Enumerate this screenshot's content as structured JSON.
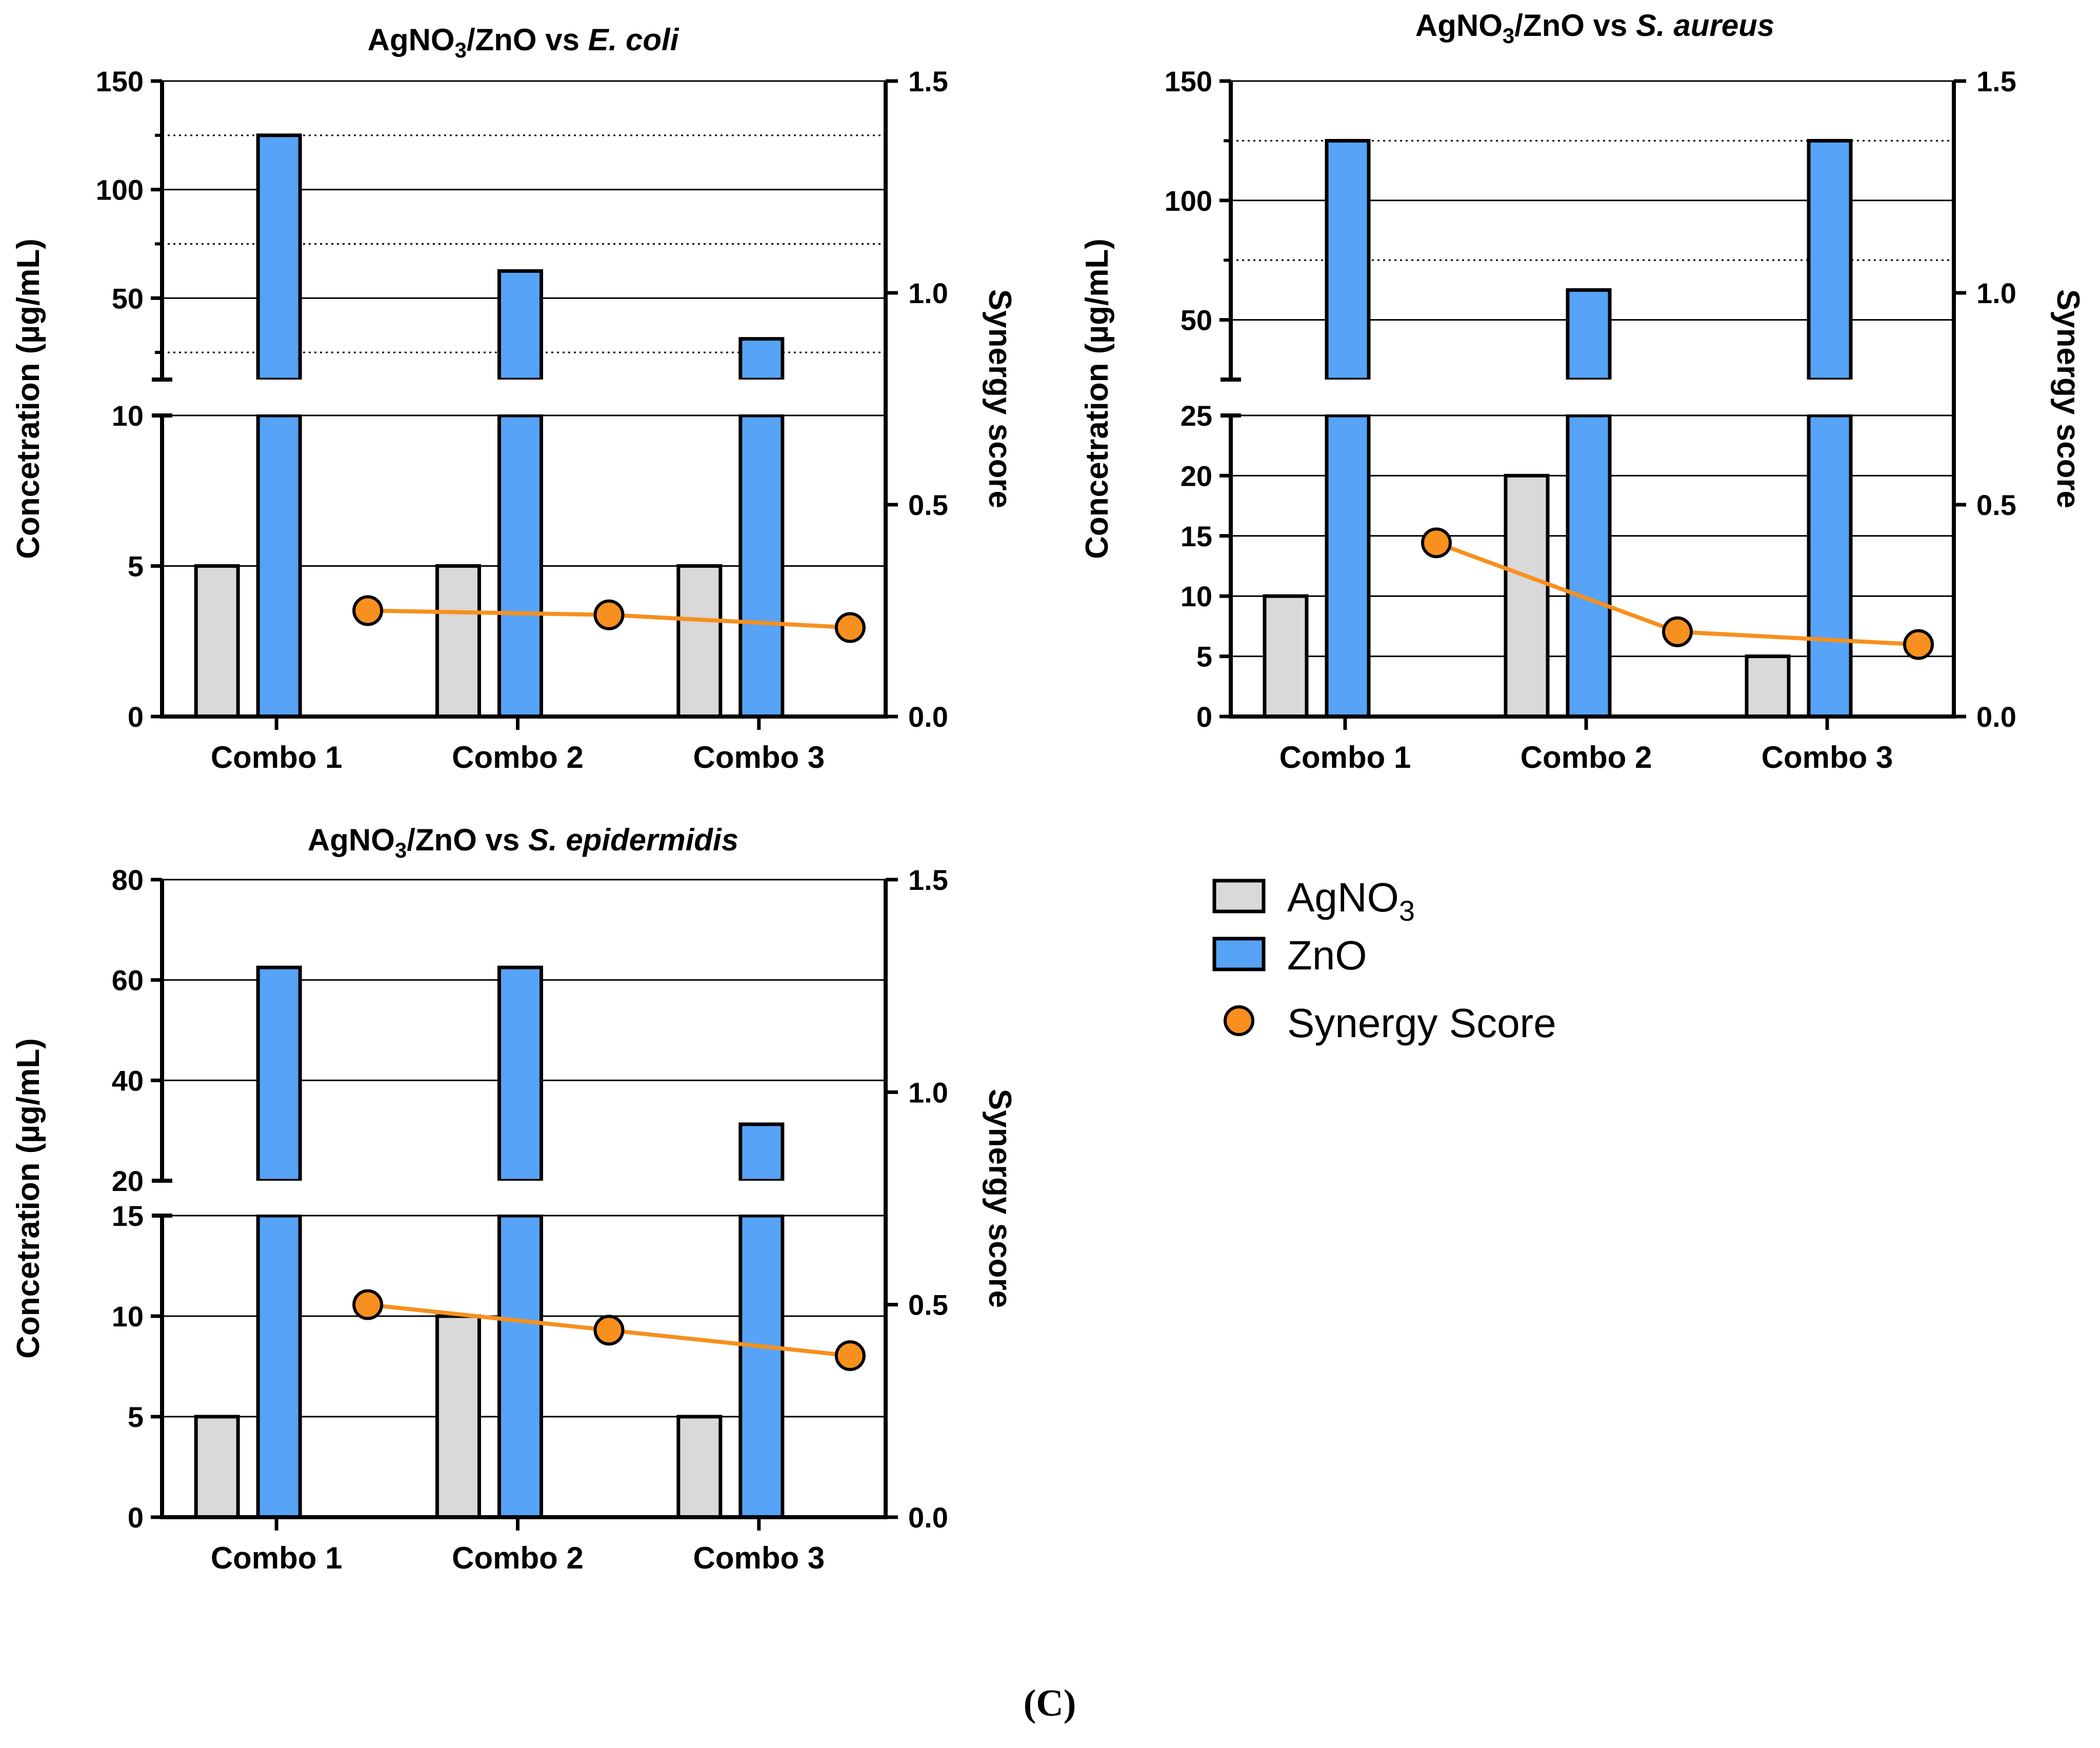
{
  "caption": "(C)",
  "colors": {
    "agno3": "#d9d9d9",
    "zno": "#56a3f7",
    "synergy": "#f7901e",
    "axis": "#000000"
  },
  "legend": {
    "items": [
      {
        "name": "AgNO3",
        "base": "AgNO",
        "sub": "3",
        "icon": "grey-bar-swatch"
      },
      {
        "name": "ZnO",
        "base": "ZnO",
        "sub": "",
        "icon": "blue-bar-swatch"
      },
      {
        "name": "Synergy Score",
        "base": "Synergy Score",
        "sub": "",
        "icon": "orange-circle-marker"
      }
    ]
  },
  "chart_data": [
    {
      "type": "bar",
      "title": {
        "pre": "AgNO",
        "sub": "3",
        "mid": "/ZnO vs ",
        "organism": "E. coli"
      },
      "ylabel": "Concetration (µg/mL)",
      "y2label": "Synergy score",
      "categories": [
        "Combo 1",
        "Combo 2",
        "Combo 3"
      ],
      "series": [
        {
          "name": "AgNO3",
          "values": [
            5,
            5,
            5
          ]
        },
        {
          "name": "ZnO",
          "values": [
            125,
            62.5,
            31.25
          ]
        },
        {
          "name": "Synergy Score",
          "axis": "right",
          "values": [
            0.25,
            0.24,
            0.21
          ]
        }
      ],
      "y_lower": {
        "range": [
          0,
          10
        ],
        "ticks": [
          0,
          5,
          10
        ],
        "gridlines": [
          5,
          10
        ]
      },
      "y_upper": {
        "range": [
          12.5,
          150
        ],
        "ticks": [
          50,
          100,
          150
        ],
        "gridlines": [
          50,
          100,
          150
        ],
        "dotted": [
          25,
          75,
          125
        ]
      },
      "y2": {
        "range": [
          0,
          1.5
        ],
        "ticks": [
          0.0,
          0.5,
          1.0,
          1.5
        ],
        "tick_labels": [
          "0.0",
          "0.5",
          "1.0",
          "1.5"
        ]
      }
    },
    {
      "type": "bar",
      "title": {
        "pre": "AgNO",
        "sub": "3",
        "mid": "/ZnO vs ",
        "organism": "S. aureus"
      },
      "ylabel": "Concetration (µg/mL)",
      "y2label": "Synergy score",
      "categories": [
        "Combo 1",
        "Combo 2",
        "Combo 3"
      ],
      "series": [
        {
          "name": "AgNO3",
          "values": [
            10,
            20,
            5
          ]
        },
        {
          "name": "ZnO",
          "values": [
            125,
            62.5,
            125
          ]
        },
        {
          "name": "Synergy Score",
          "axis": "right",
          "values": [
            0.41,
            0.2,
            0.17
          ]
        }
      ],
      "y_lower": {
        "range": [
          0,
          25
        ],
        "ticks": [
          0,
          5,
          10,
          15,
          20,
          25
        ],
        "gridlines": [
          5,
          10,
          15,
          20,
          25
        ]
      },
      "y_upper": {
        "range": [
          25,
          150
        ],
        "ticks": [
          50,
          100,
          150
        ],
        "gridlines": [
          50,
          100,
          150
        ],
        "dotted": [
          75,
          125
        ]
      },
      "y2": {
        "range": [
          0,
          1.5
        ],
        "ticks": [
          0.0,
          0.5,
          1.0,
          1.5
        ],
        "tick_labels": [
          "0.0",
          "0.5",
          "1.0",
          "1.5"
        ]
      }
    },
    {
      "type": "bar",
      "title": {
        "pre": "AgNO",
        "sub": "3",
        "mid": "/ZnO vs ",
        "organism": "S. epidermidis"
      },
      "ylabel": "Concetration (µg/mL)",
      "y2label": "Synergy score",
      "categories": [
        "Combo 1",
        "Combo 2",
        "Combo 3"
      ],
      "series": [
        {
          "name": "AgNO3",
          "values": [
            5,
            10,
            5
          ]
        },
        {
          "name": "ZnO",
          "values": [
            62.5,
            62.5,
            31.25
          ]
        },
        {
          "name": "Synergy Score",
          "axis": "right",
          "values": [
            0.5,
            0.44,
            0.38
          ]
        }
      ],
      "y_lower": {
        "range": [
          0,
          15
        ],
        "ticks": [
          0,
          5,
          10,
          15
        ],
        "gridlines": [
          5,
          10,
          15
        ]
      },
      "y_upper": {
        "range": [
          20,
          80
        ],
        "ticks": [
          20,
          40,
          60,
          80
        ],
        "gridlines": [
          40,
          60,
          80
        ],
        "dotted": []
      },
      "y2": {
        "range": [
          0,
          1.5
        ],
        "ticks": [
          0.0,
          0.5,
          1.0,
          1.5
        ],
        "tick_labels": [
          "0.0",
          "0.5",
          "1.0",
          "1.5"
        ]
      }
    }
  ]
}
